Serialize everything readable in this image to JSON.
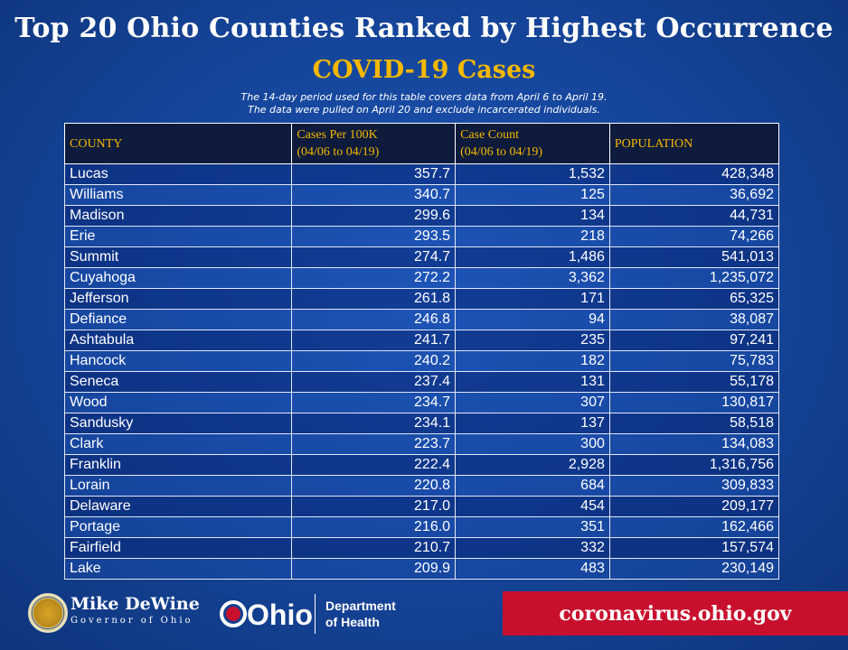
{
  "title": "Top 20 Ohio Counties Ranked by Highest Occurrence",
  "subtitle": "COVID-19 Cases",
  "note_line1": "The 14-day period used for this table covers data from April 6 to April 19.",
  "note_line2": "The data were pulled on April 20 and exclude incarcerated individuals.",
  "colors": {
    "header_text": "#f5b800",
    "header_bg": "#0e1b3c",
    "background": "#16479e",
    "url_bg": "#c8102e"
  },
  "chart_data": {
    "type": "table",
    "title": "Top 20 Ohio Counties Ranked by Highest Occurrence — COVID-19 Cases",
    "columns": [
      {
        "line1": "COUNTY",
        "line2": ""
      },
      {
        "line1": "Cases Per 100K",
        "line2": "(04/06 to 04/19)"
      },
      {
        "line1": "Case Count",
        "line2": "(04/06 to 04/19)"
      },
      {
        "line1": "POPULATION",
        "line2": ""
      }
    ],
    "rows": [
      [
        "Lucas",
        "357.7",
        "1,532",
        "428,348"
      ],
      [
        "Williams",
        "340.7",
        "125",
        "36,692"
      ],
      [
        "Madison",
        "299.6",
        "134",
        "44,731"
      ],
      [
        "Erie",
        "293.5",
        "218",
        "74,266"
      ],
      [
        "Summit",
        "274.7",
        "1,486",
        "541,013"
      ],
      [
        "Cuyahoga",
        "272.2",
        "3,362",
        "1,235,072"
      ],
      [
        "Jefferson",
        "261.8",
        "171",
        "65,325"
      ],
      [
        "Defiance",
        "246.8",
        "94",
        "38,087"
      ],
      [
        "Ashtabula",
        "241.7",
        "235",
        "97,241"
      ],
      [
        "Hancock",
        "240.2",
        "182",
        "75,783"
      ],
      [
        "Seneca",
        "237.4",
        "131",
        "55,178"
      ],
      [
        "Wood",
        "234.7",
        "307",
        "130,817"
      ],
      [
        "Sandusky",
        "234.1",
        "137",
        "58,518"
      ],
      [
        "Clark",
        "223.7",
        "300",
        "134,083"
      ],
      [
        "Franklin",
        "222.4",
        "2,928",
        "1,316,756"
      ],
      [
        "Lorain",
        "220.8",
        "684",
        "309,833"
      ],
      [
        "Delaware",
        "217.0",
        "454",
        "209,177"
      ],
      [
        "Portage",
        "216.0",
        "351",
        "162,466"
      ],
      [
        "Fairfield",
        "210.7",
        "332",
        "157,574"
      ],
      [
        "Lake",
        "209.9",
        "483",
        "230,149"
      ]
    ]
  },
  "footer": {
    "governor_name": "Mike DeWine",
    "governor_title": "Governor of Ohio",
    "ohio_logo_text": "Ohio",
    "dept_line1": "Department",
    "dept_line2": "of Health",
    "url": "coronavirus.ohio.gov"
  }
}
